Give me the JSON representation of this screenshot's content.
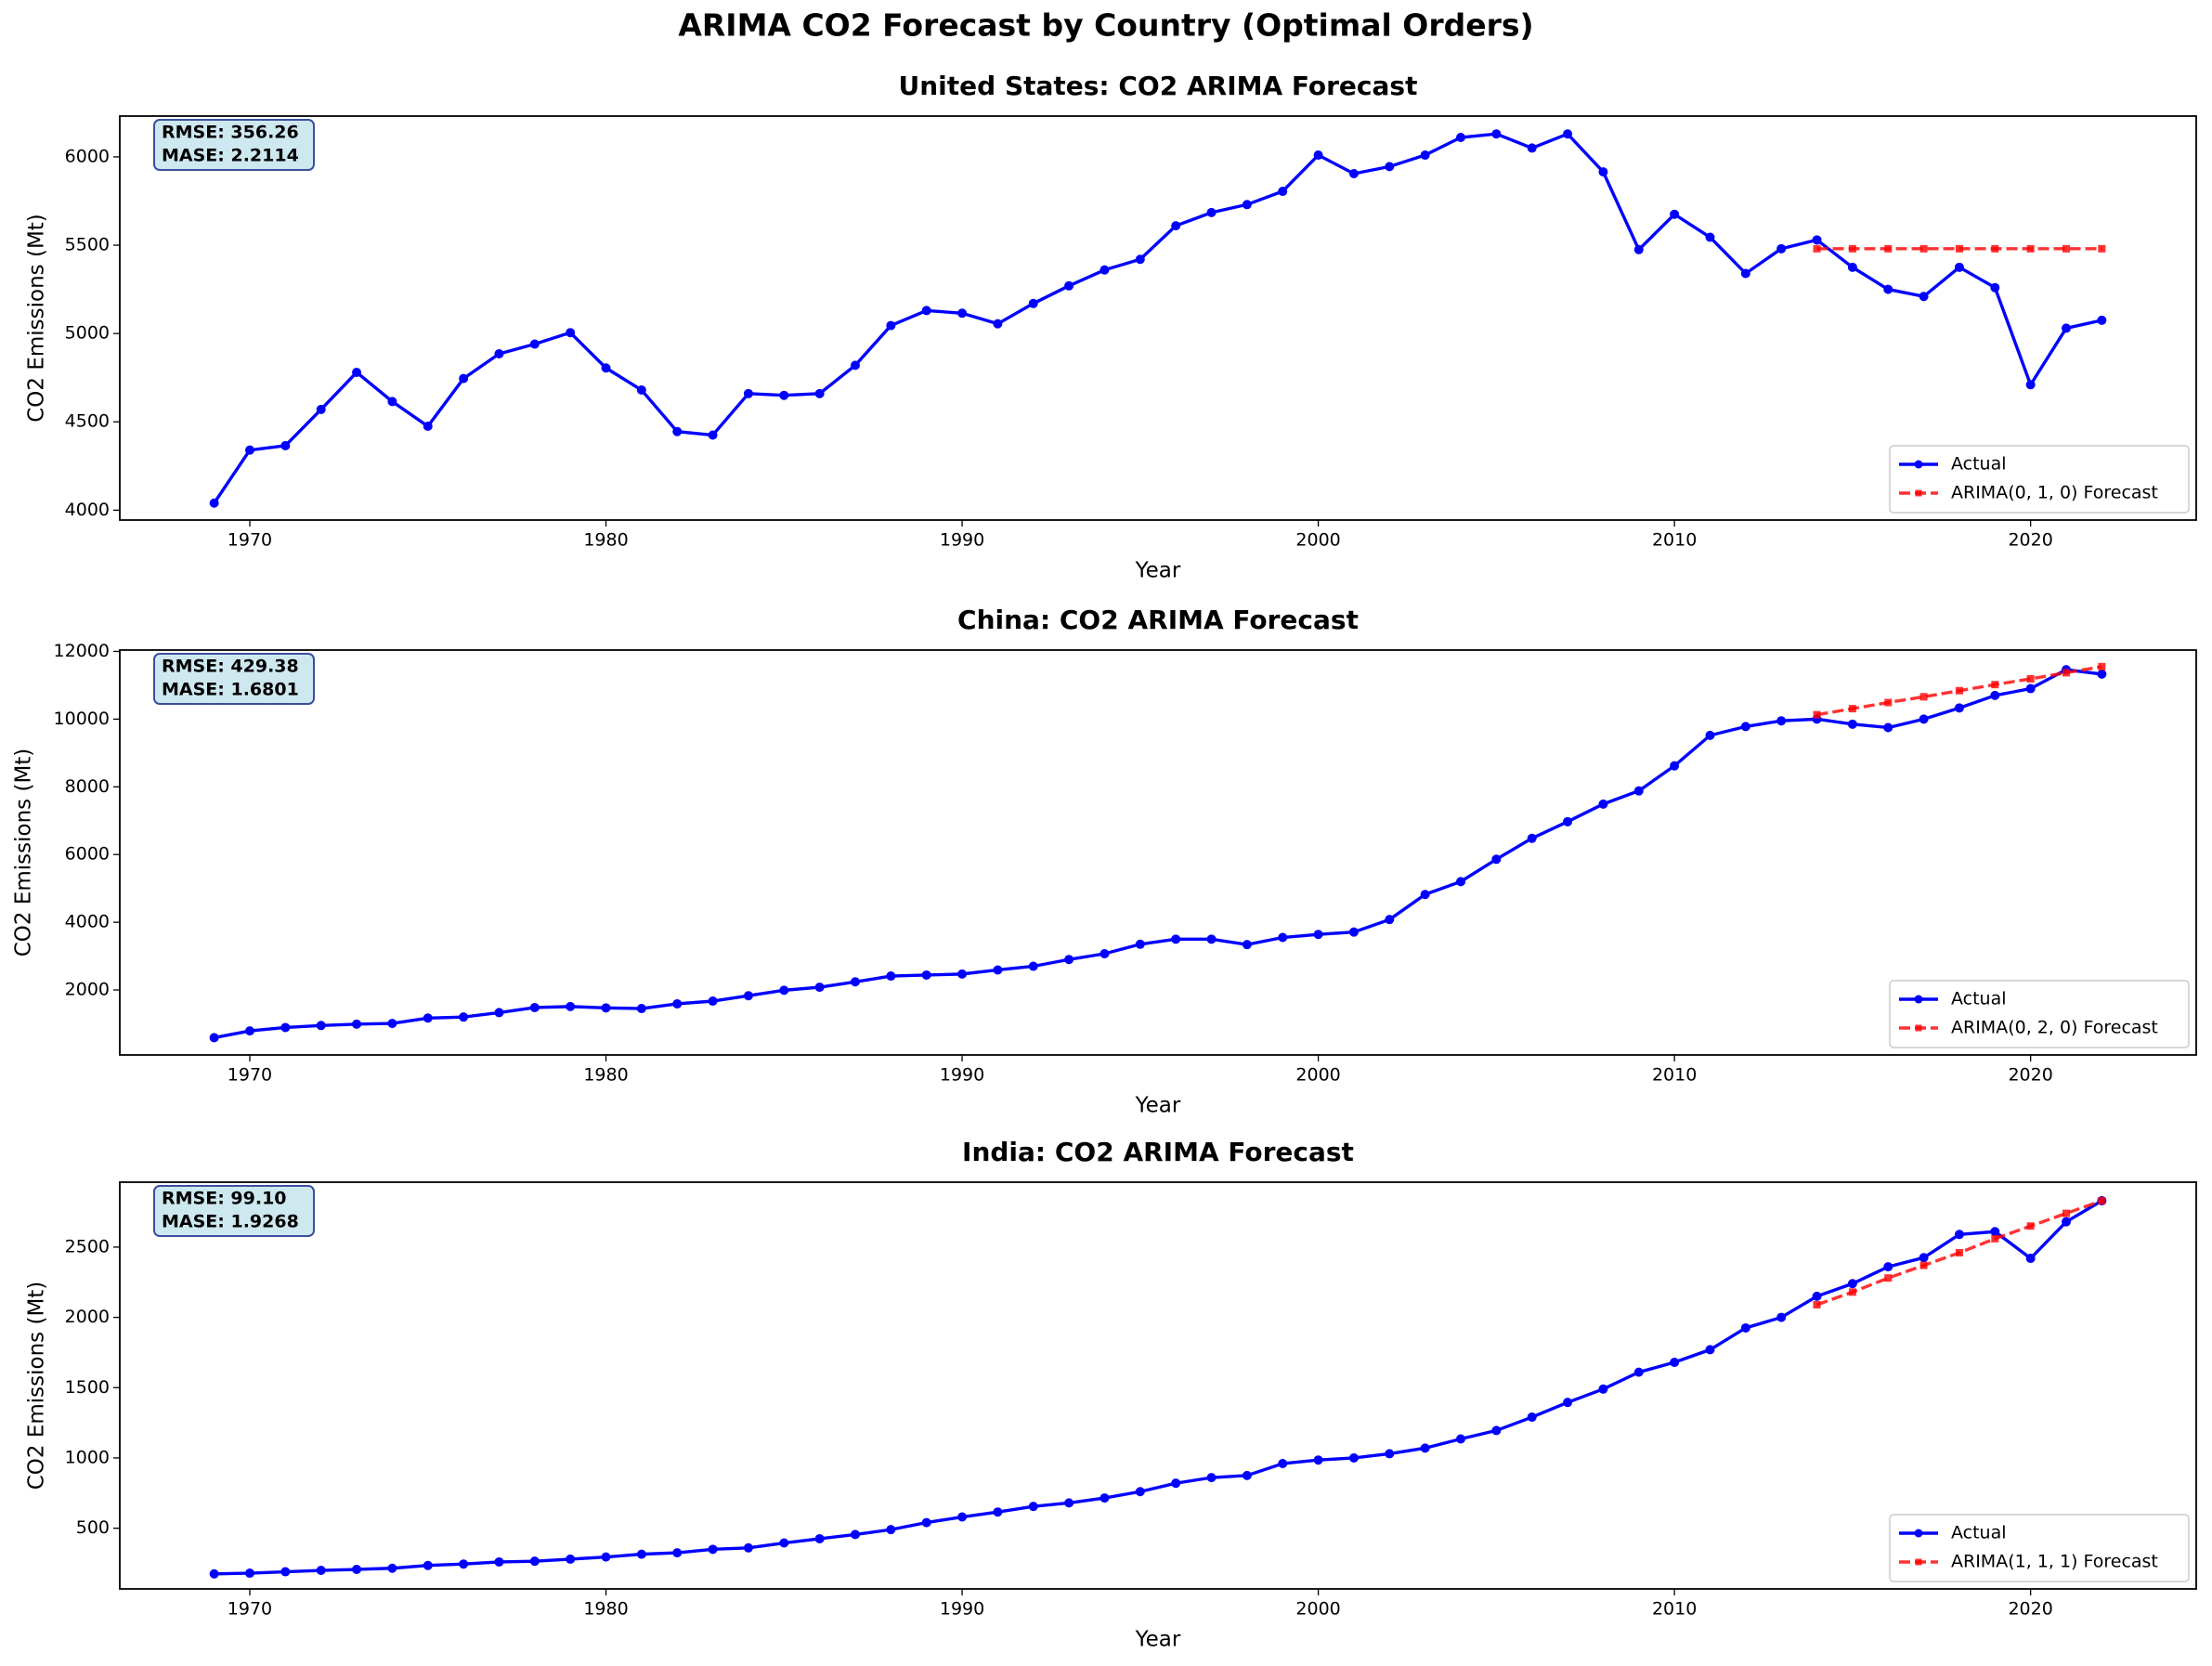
{
  "title": "ARIMA CO2 Forecast by Country (Optimal Orders)",
  "chart_data": [
    {
      "type": "line",
      "title": "United States: CO2 ARIMA Forecast",
      "xlabel": "Year",
      "ylabel": "CO2 Emissions (Mt)",
      "annotations": [
        "RMSE: 356.26",
        "MASE: 2.2114"
      ],
      "legend": "lower right",
      "xlim": [
        1966.35,
        2024.65
      ],
      "xticks": [
        1970,
        1980,
        1990,
        2000,
        2010,
        2020
      ],
      "ylim": [
        3944,
        6231
      ],
      "yticks": [
        4000,
        4500,
        5000,
        5500,
        6000
      ],
      "series": [
        {
          "name": "Actual",
          "color": "#0000ff",
          "linestyle": "solid",
          "marker": "circle",
          "x": [
            1969,
            1970,
            1971,
            1972,
            1973,
            1974,
            1975,
            1976,
            1977,
            1978,
            1979,
            1980,
            1981,
            1982,
            1983,
            1984,
            1985,
            1986,
            1987,
            1988,
            1989,
            1990,
            1991,
            1992,
            1993,
            1994,
            1995,
            1996,
            1997,
            1998,
            1999,
            2000,
            2001,
            2002,
            2003,
            2004,
            2005,
            2006,
            2007,
            2008,
            2009,
            2010,
            2011,
            2012,
            2013,
            2014,
            2015,
            2016,
            2017,
            2018,
            2019,
            2020,
            2021,
            2022
          ],
          "values": [
            4040,
            4340,
            4365,
            4570,
            4780,
            4615,
            4475,
            4745,
            4885,
            4940,
            5005,
            4805,
            4680,
            4445,
            4425,
            4660,
            4650,
            4660,
            4820,
            5045,
            5130,
            5115,
            5055,
            5170,
            5270,
            5360,
            5420,
            5610,
            5685,
            5730,
            5805,
            6010,
            5905,
            5945,
            6010,
            6110,
            6130,
            6050,
            6130,
            5915,
            5475,
            5675,
            5545,
            5340,
            5480,
            5530,
            5375,
            5250,
            5210,
            5375,
            5260,
            4710,
            5030,
            5075
          ]
        },
        {
          "name": "ARIMA(0, 1, 0) Forecast",
          "color": "#ff0000",
          "linestyle": "dashed",
          "marker": "square",
          "x": [
            2014,
            2015,
            2016,
            2017,
            2018,
            2019,
            2020,
            2021,
            2022
          ],
          "values": [
            5480,
            5480,
            5480,
            5480,
            5480,
            5480,
            5480,
            5480,
            5480
          ]
        }
      ]
    },
    {
      "type": "line",
      "title": "China: CO2 ARIMA Forecast",
      "xlabel": "Year",
      "ylabel": "CO2 Emissions (Mt)",
      "annotations": [
        "RMSE: 429.38",
        "MASE: 1.6801"
      ],
      "legend": "lower right",
      "xlim": [
        1966.35,
        2024.65
      ],
      "xticks": [
        1970,
        1980,
        1990,
        2000,
        2010,
        2020
      ],
      "ylim": [
        80,
        12040
      ],
      "yticks": [
        2000,
        4000,
        6000,
        8000,
        10000,
        12000
      ],
      "series": [
        {
          "name": "Actual",
          "color": "#0000ff",
          "linestyle": "solid",
          "marker": "circle",
          "x": [
            1969,
            1970,
            1971,
            1972,
            1973,
            1974,
            1975,
            1976,
            1977,
            1978,
            1979,
            1980,
            1981,
            1982,
            1983,
            1984,
            1985,
            1986,
            1987,
            1988,
            1989,
            1990,
            1991,
            1992,
            1993,
            1994,
            1995,
            1996,
            1997,
            1998,
            1999,
            2000,
            2001,
            2002,
            2003,
            2004,
            2005,
            2006,
            2007,
            2008,
            2009,
            2010,
            2011,
            2012,
            2013,
            2014,
            2015,
            2016,
            2017,
            2018,
            2019,
            2020,
            2021,
            2022
          ],
          "values": [
            590,
            790,
            890,
            950,
            990,
            1010,
            1170,
            1200,
            1330,
            1480,
            1510,
            1470,
            1450,
            1590,
            1670,
            1830,
            1990,
            2080,
            2240,
            2410,
            2440,
            2470,
            2590,
            2700,
            2900,
            3070,
            3350,
            3500,
            3500,
            3340,
            3550,
            3640,
            3710,
            4080,
            4820,
            5200,
            5860,
            6480,
            6970,
            7490,
            7880,
            8620,
            9520,
            9780,
            9950,
            10000,
            9850,
            9750,
            10000,
            10330,
            10700,
            10900,
            11460,
            11330
          ]
        },
        {
          "name": "ARIMA(0, 2, 0) Forecast",
          "color": "#ff0000",
          "linestyle": "dashed",
          "marker": "square",
          "x": [
            2014,
            2015,
            2016,
            2017,
            2018,
            2019,
            2020,
            2021,
            2022
          ],
          "values": [
            10130,
            10310,
            10490,
            10660,
            10840,
            11020,
            11190,
            11370,
            11550
          ]
        }
      ]
    },
    {
      "type": "line",
      "title": "India: CO2 ARIMA Forecast",
      "xlabel": "Year",
      "ylabel": "CO2 Emissions (Mt)",
      "annotations": [
        "RMSE: 99.10",
        "MASE: 1.9268"
      ],
      "legend": "lower right",
      "xlim": [
        1966.35,
        2024.65
      ],
      "xticks": [
        1970,
        1980,
        1990,
        2000,
        2010,
        2020
      ],
      "ylim": [
        68,
        2962
      ],
      "yticks": [
        500,
        1000,
        1500,
        2000,
        2500
      ],
      "series": [
        {
          "name": "Actual",
          "color": "#0000ff",
          "linestyle": "solid",
          "marker": "circle",
          "x": [
            1969,
            1970,
            1971,
            1972,
            1973,
            1974,
            1975,
            1976,
            1977,
            1978,
            1979,
            1980,
            1981,
            1982,
            1983,
            1984,
            1985,
            1986,
            1987,
            1988,
            1989,
            1990,
            1991,
            1992,
            1993,
            1994,
            1995,
            1996,
            1997,
            1998,
            1999,
            2000,
            2001,
            2002,
            2003,
            2004,
            2005,
            2006,
            2007,
            2008,
            2009,
            2010,
            2011,
            2012,
            2013,
            2014,
            2015,
            2016,
            2017,
            2018,
            2019,
            2020,
            2021,
            2022
          ],
          "values": [
            175,
            180,
            190,
            200,
            207,
            215,
            235,
            245,
            260,
            265,
            280,
            295,
            315,
            325,
            350,
            360,
            395,
            425,
            455,
            490,
            540,
            580,
            615,
            655,
            680,
            715,
            760,
            820,
            860,
            875,
            960,
            985,
            1000,
            1030,
            1070,
            1135,
            1195,
            1290,
            1395,
            1490,
            1610,
            1680,
            1770,
            1925,
            2000,
            2150,
            2240,
            2360,
            2425,
            2590,
            2610,
            2420,
            2680,
            2830
          ]
        },
        {
          "name": "ARIMA(1, 1, 1) Forecast",
          "color": "#ff0000",
          "linestyle": "dashed",
          "marker": "square",
          "x": [
            2014,
            2015,
            2016,
            2017,
            2018,
            2019,
            2020,
            2021,
            2022
          ],
          "values": [
            2090,
            2180,
            2280,
            2370,
            2460,
            2560,
            2650,
            2740,
            2830
          ]
        }
      ]
    }
  ]
}
